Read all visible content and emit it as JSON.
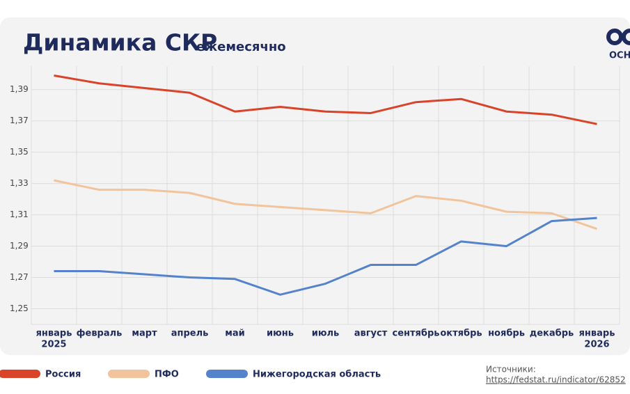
{
  "chart_data": {
    "type": "line",
    "title": "Динамика СКР",
    "subtitle": "ежемесячно",
    "logo_text": "ОСН",
    "categories": [
      "январь",
      "февраль",
      "март",
      "апрель",
      "май",
      "июнь",
      "июль",
      "август",
      "сентябрь",
      "октябрь",
      "ноябрь",
      "декабрь",
      "январь"
    ],
    "first_year": "2025",
    "last_year": "2026",
    "series": [
      {
        "name": "Россия",
        "color": "#d9432a",
        "values": [
          1.399,
          1.394,
          1.391,
          1.388,
          1.376,
          1.379,
          1.376,
          1.375,
          1.382,
          1.384,
          1.376,
          1.374,
          1.368
        ]
      },
      {
        "name": "ПФО",
        "color": "#f2c49b",
        "values": [
          1.332,
          1.326,
          1.326,
          1.324,
          1.317,
          1.315,
          1.313,
          1.311,
          1.322,
          1.319,
          1.312,
          1.311,
          1.301
        ]
      },
      {
        "name": "Нижегородская область",
        "color": "#5483cc",
        "values": [
          1.274,
          1.274,
          1.272,
          1.27,
          1.269,
          1.259,
          1.266,
          1.278,
          1.278,
          1.293,
          1.29,
          1.306,
          1.308
        ]
      }
    ],
    "ylim": [
      1.24,
      1.405
    ],
    "yticks": [
      {
        "value": 1.25,
        "label": "1,25"
      },
      {
        "value": 1.27,
        "label": "1,27"
      },
      {
        "value": 1.29,
        "label": "1,29"
      },
      {
        "value": 1.31,
        "label": "1,31"
      },
      {
        "value": 1.33,
        "label": "1,33"
      },
      {
        "value": 1.35,
        "label": "1,35"
      },
      {
        "value": 1.37,
        "label": "1,37"
      },
      {
        "value": 1.39,
        "label": "1,39"
      }
    ],
    "grid": true,
    "source_label": "Источники:",
    "source_url": "https://fedstat.ru/indicator/62852"
  }
}
